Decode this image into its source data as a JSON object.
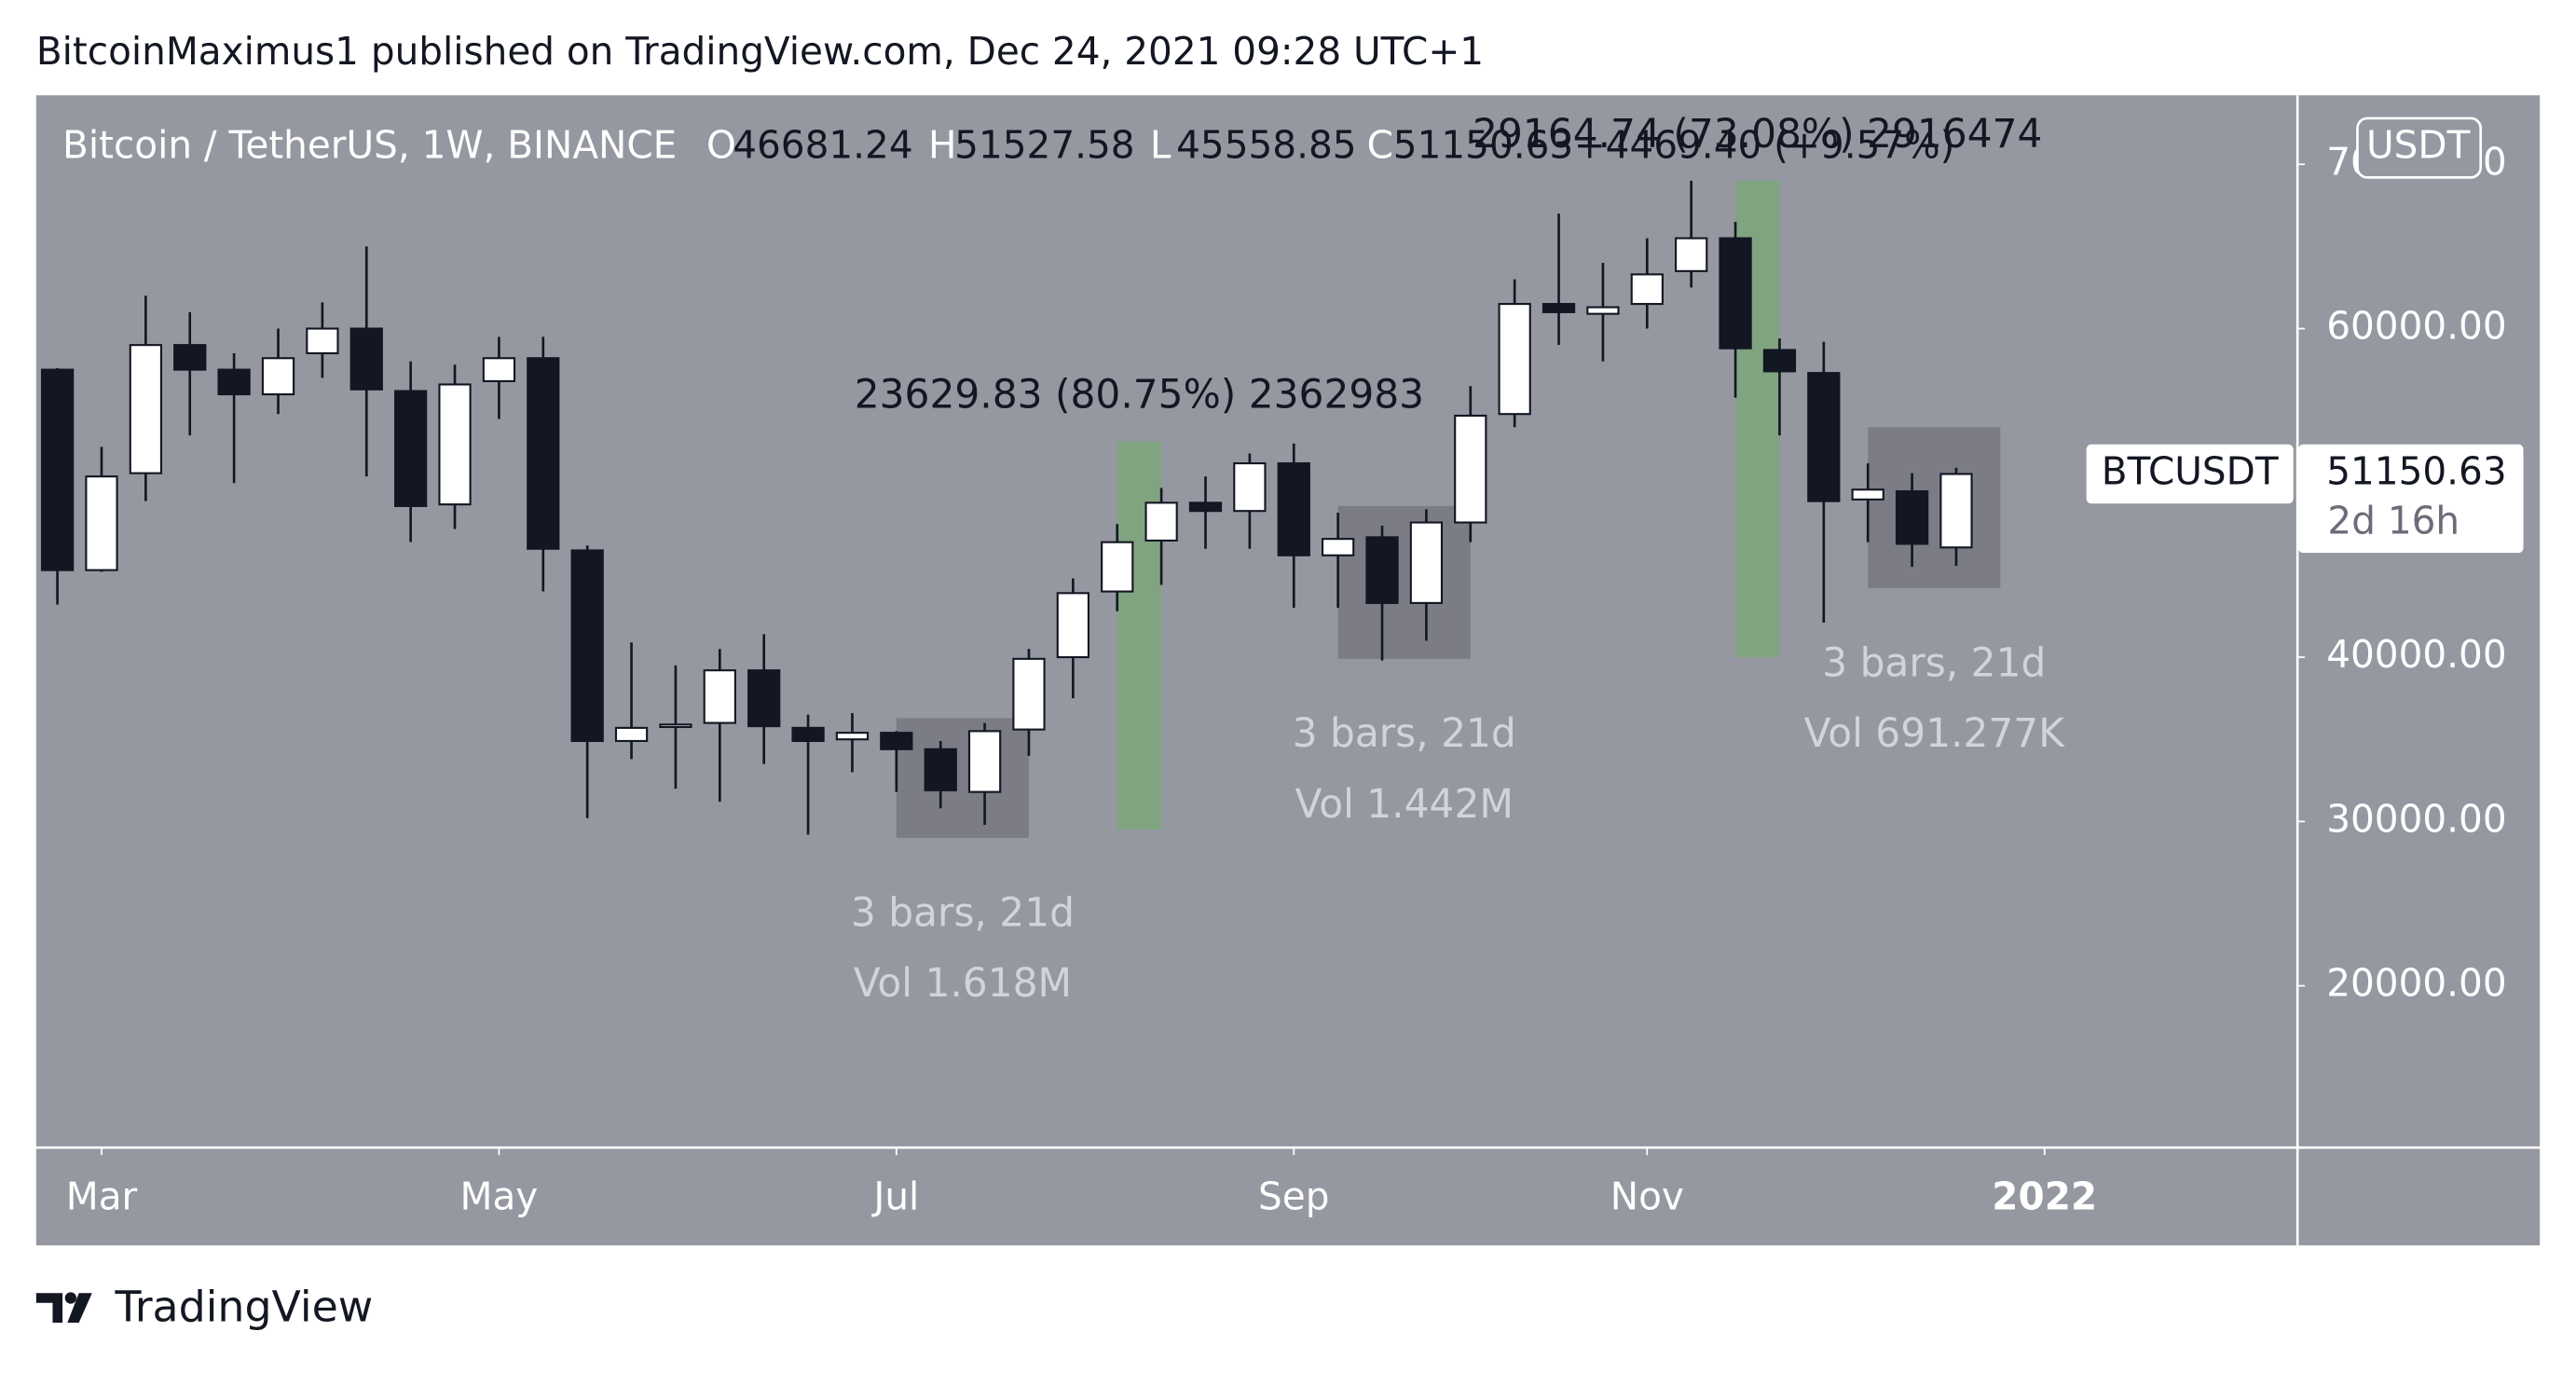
{
  "header": "BitcoinMaximus1 published on TradingView.com, Dec 24, 2021 09:28 UTC+1",
  "footer": "TradingView",
  "chart_data": {
    "type": "candlestick",
    "title": "Bitcoin / TetherUS, 1W, BINANCE",
    "legend": [
      {
        "label": "O",
        "value": 46681.24
      },
      {
        "label": "H",
        "value": 51527.58
      },
      {
        "label": "L",
        "value": 45558.85
      },
      {
        "label": "C",
        "value": 51150.63
      }
    ],
    "change": "+4469.40 (+9.57%)",
    "open": [
      57500,
      45300,
      51200,
      59000,
      57500,
      56000,
      58500,
      60000,
      56200,
      49300,
      56800,
      58200,
      46500,
      34900,
      35800,
      36000,
      39200,
      35700,
      35000,
      35400,
      34400,
      31800,
      35600,
      40000,
      44000,
      47100,
      49400,
      48900,
      51800,
      46200,
      47300,
      43300,
      48200,
      54800,
      61500,
      60900,
      61500,
      63500,
      65500,
      58700,
      57300,
      49600,
      50100,
      46681.24
    ],
    "high": [
      57600,
      52800,
      62000,
      61000,
      58500,
      60000,
      61600,
      65000,
      58000,
      57800,
      59500,
      59500,
      46800,
      40900,
      39500,
      40500,
      41400,
      36500,
      36600,
      35500,
      34900,
      36000,
      40500,
      44800,
      48100,
      50300,
      51000,
      52400,
      53000,
      48800,
      48000,
      49000,
      56500,
      63000,
      67000,
      64000,
      65500,
      69000,
      66500,
      59400,
      59200,
      51800,
      51200,
      51527.58
    ],
    "low": [
      43200,
      45200,
      49500,
      53500,
      50600,
      54800,
      57000,
      51000,
      47000,
      47800,
      54500,
      44000,
      30200,
      33800,
      32000,
      31200,
      33500,
      29200,
      33000,
      31800,
      30800,
      29800,
      34000,
      37500,
      42800,
      44400,
      46600,
      46600,
      43000,
      43000,
      39800,
      41000,
      47000,
      54000,
      59000,
      58000,
      60000,
      62500,
      55800,
      53500,
      42100,
      47000,
      45500,
      45558.85
    ],
    "close": [
      45300,
      51000,
      59000,
      57500,
      56000,
      58200,
      60000,
      56300,
      49200,
      56600,
      58200,
      46600,
      34900,
      35700,
      35900,
      39200,
      35800,
      34900,
      35400,
      34400,
      31900,
      35500,
      39900,
      43900,
      47000,
      49400,
      48900,
      51800,
      46200,
      47200,
      43300,
      48200,
      54700,
      61500,
      61000,
      61300,
      63300,
      65500,
      58800,
      57400,
      49500,
      50200,
      46900,
      51150.63
    ],
    "colors": {
      "up": "#ffffff",
      "down": "#131722"
    },
    "xlim": [
      -0.48,
      50.71
    ],
    "xticks": [
      {
        "value": 1,
        "label": "Mar"
      },
      {
        "value": 10,
        "label": "May"
      },
      {
        "value": 19,
        "label": "Jul"
      },
      {
        "value": 28,
        "label": "Sep"
      },
      {
        "value": 36,
        "label": "Nov"
      },
      {
        "value": 45,
        "label": "2022"
      }
    ],
    "ylim": [
      10200,
      74200
    ],
    "yticks": [
      {
        "value": 20000,
        "label": "20000.00"
      },
      {
        "value": 30000,
        "label": "30000.00"
      },
      {
        "value": 40000,
        "label": "40000.00"
      },
      {
        "value": 50000,
        "label": "50000.00"
      },
      {
        "value": 60000,
        "label": "60000.00"
      },
      {
        "value": 70000,
        "label": "70000.00"
      }
    ],
    "currency": "USDT",
    "last_price": {
      "symbol": "BTCUSDT",
      "value": 51150.63,
      "countdown": "2d 16h"
    },
    "price_ranges": [
      {
        "from": 24,
        "to": 25,
        "low": 29500,
        "high": 53130,
        "label": "23629.83 (80.75%) 2362983",
        "color": "#80a47f"
      },
      {
        "from": 38,
        "to": 39,
        "low": 40000,
        "high": 69000,
        "label": "29164.74 (73.08%) 2916474",
        "color": "#80a47f"
      }
    ],
    "date_ranges": [
      {
        "from": 19,
        "to": 22,
        "low": 29000,
        "high": 36300,
        "lines": [
          "3 bars, 21d",
          "Vol 1.618M"
        ]
      },
      {
        "from": 29,
        "to": 32,
        "low": 39900,
        "high": 49200,
        "lines": [
          "3 bars, 21d",
          "Vol 1.442M"
        ]
      },
      {
        "from": 41,
        "to": 44,
        "low": 44200,
        "high": 54000,
        "lines": [
          "3 bars, 21d",
          "Vol 691.277K"
        ]
      }
    ]
  }
}
